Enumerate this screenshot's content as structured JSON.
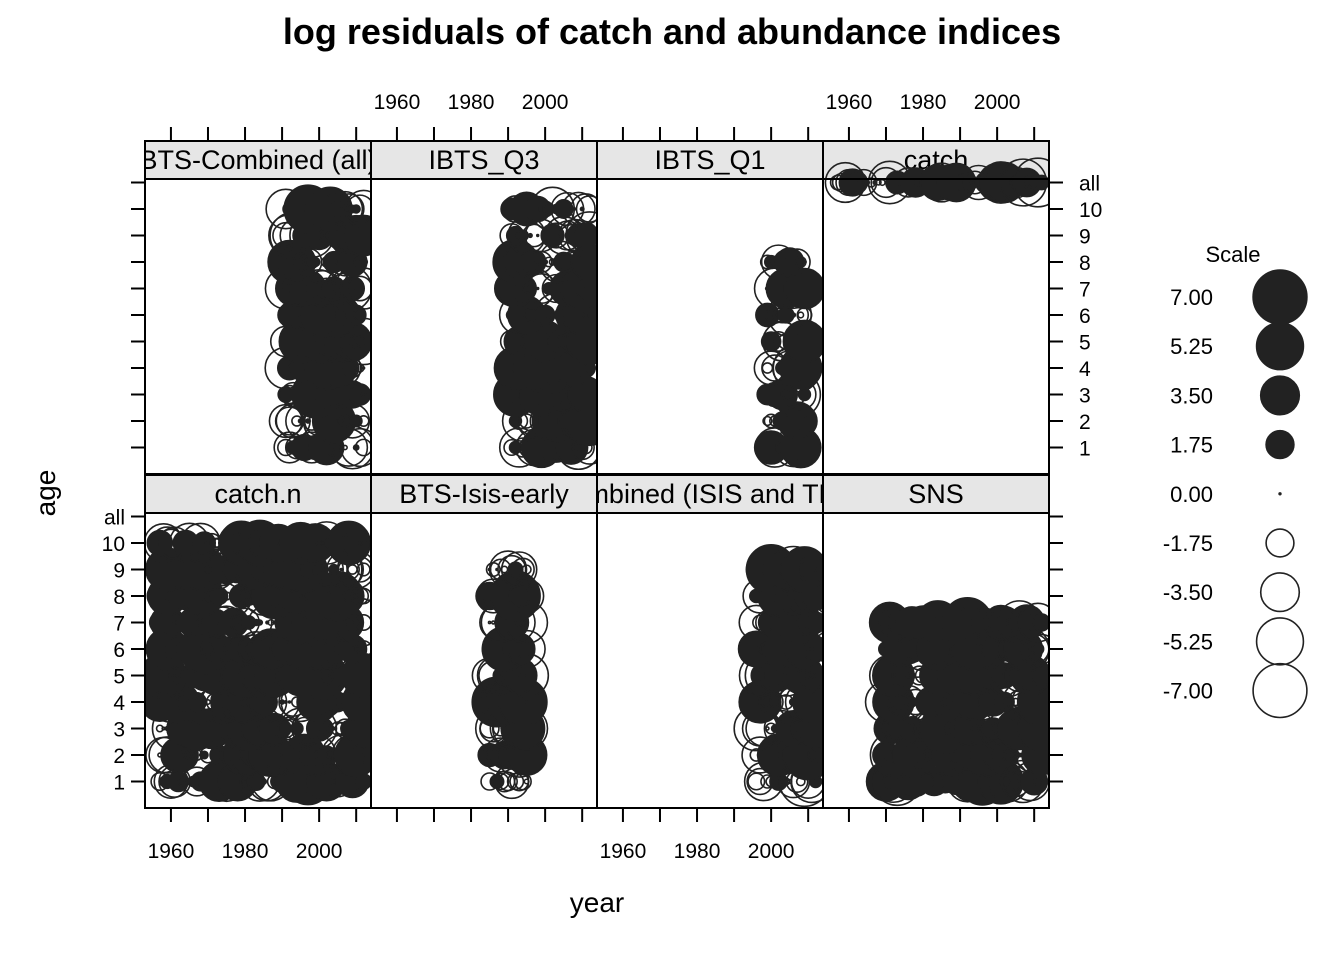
{
  "chart_data": {
    "type": "bubble-residuals",
    "title": "log residuals of catch and abundance indices",
    "xlabel": "year",
    "ylabel": "age",
    "x_ticks": [
      1960,
      1980,
      2000
    ],
    "x_range": [
      1953,
      2014
    ],
    "y_levels": [
      "1",
      "2",
      "3",
      "4",
      "5",
      "6",
      "7",
      "8",
      "9",
      "10",
      "all"
    ],
    "fill_color": "#222222",
    "legend": {
      "title": "Scale",
      "entries": [
        "7.00",
        "5.25",
        "3.50",
        "1.75",
        "0.00",
        "-1.75",
        "-3.50",
        "-5.25",
        "-7.00"
      ],
      "values": [
        7.0,
        5.25,
        3.5,
        1.75,
        0.0,
        -1.75,
        -3.5,
        -5.25,
        -7.0
      ]
    },
    "panels": [
      {
        "name": "catch.n",
        "years": [
          1957,
          2012
        ],
        "ages": [
          "1",
          "2",
          "3",
          "4",
          "5",
          "6",
          "7",
          "8",
          "9",
          "10"
        ],
        "seed": 11
      },
      {
        "name": "BTS-Isis-early",
        "years": [
          1985,
          1995
        ],
        "ages": [
          "1",
          "2",
          "3",
          "4",
          "5",
          "6",
          "7",
          "8",
          "9"
        ],
        "seed": 23
      },
      {
        "name": "BTS-Combined (ISIS and TRIDENS)",
        "years": [
          1996,
          2012
        ],
        "ages": [
          "1",
          "2",
          "3",
          "4",
          "5",
          "6",
          "7",
          "8",
          "9"
        ],
        "seed": 37
      },
      {
        "name": "SNS",
        "years": [
          1970,
          2012
        ],
        "ages": [
          "1",
          "2",
          "3",
          "4",
          "5",
          "6",
          "7"
        ],
        "seed": 41
      },
      {
        "name": "BTS-Combined (all)",
        "years": [
          1991,
          2012
        ],
        "ages": [
          "1",
          "2",
          "3",
          "4",
          "5",
          "6",
          "7",
          "8",
          "9",
          "10"
        ],
        "seed": 53
      },
      {
        "name": "IBTS_Q3",
        "years": [
          1991,
          2012
        ],
        "ages": [
          "1",
          "2",
          "3",
          "4",
          "5",
          "6",
          "7",
          "8",
          "9",
          "10"
        ],
        "seed": 67
      },
      {
        "name": "IBTS_Q1",
        "years": [
          1999,
          2009
        ],
        "ages": [
          "1",
          "2",
          "3",
          "4",
          "5",
          "6",
          "7",
          "8"
        ],
        "seed": 79
      },
      {
        "name": "catch",
        "years": [
          1957,
          2012
        ],
        "ages": [
          "all"
        ],
        "seed": 97
      }
    ]
  }
}
